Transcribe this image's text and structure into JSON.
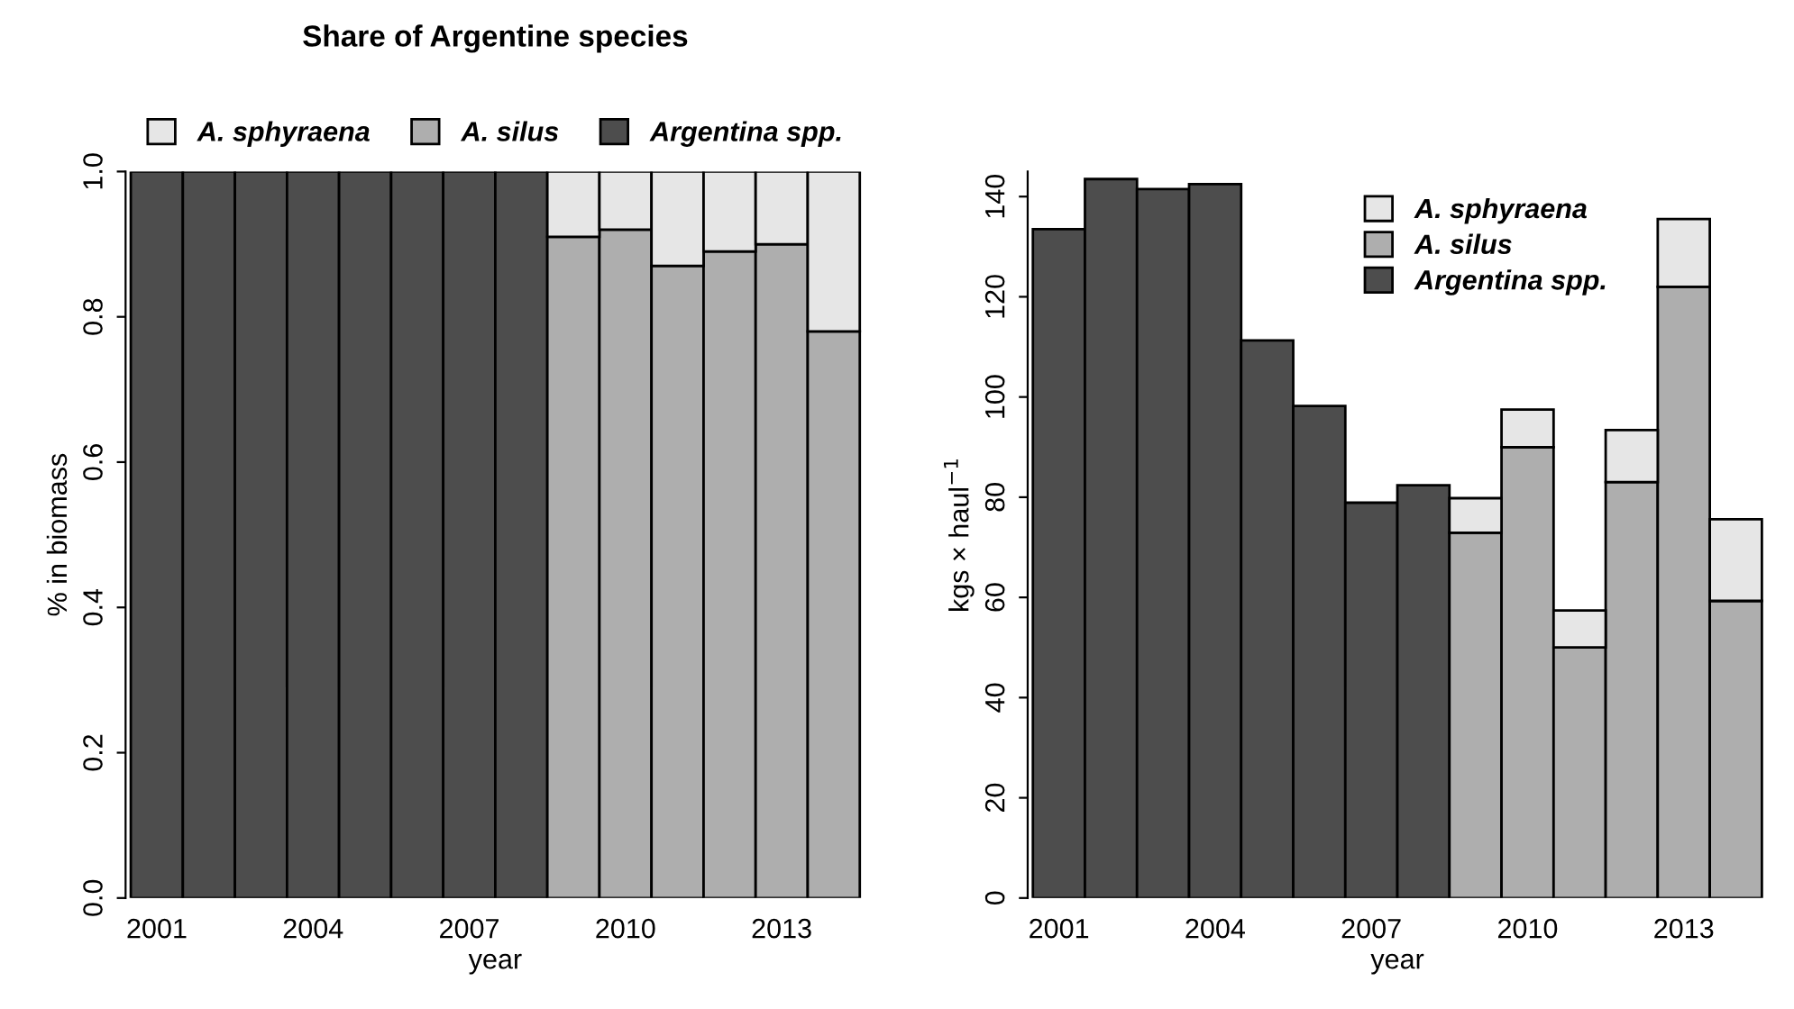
{
  "chart_data": [
    {
      "type": "bar",
      "title": "Share of Argentine species",
      "xlabel": "year",
      "ylabel": "% in biomass",
      "categories": [
        "2001",
        null,
        null,
        "2004",
        null,
        null,
        "2007",
        null,
        null,
        "2010",
        null,
        null,
        "2013",
        null
      ],
      "stacked": true,
      "legend": "top",
      "grid": false,
      "ylim": [
        0,
        1
      ],
      "yticks": [
        {
          "value": 0,
          "label": "0.0"
        },
        {
          "value": 0.2,
          "label": "0.2"
        },
        {
          "value": 0.4,
          "label": "0.4"
        },
        {
          "value": 0.6,
          "label": "0.6"
        },
        {
          "value": 0.8,
          "label": "0.8"
        },
        {
          "value": 1,
          "label": "1.0"
        }
      ],
      "series": [
        {
          "name": "Argentina spp.",
          "color": "#4d4d4d",
          "values": [
            1,
            1,
            1,
            1,
            1,
            1,
            1,
            1,
            null,
            null,
            null,
            null,
            null,
            null
          ]
        },
        {
          "name": "A. silus",
          "color": "#aeaeae",
          "values": [
            null,
            null,
            null,
            null,
            null,
            null,
            null,
            null,
            0.91,
            0.92,
            0.87,
            0.89,
            0.9,
            0.78
          ]
        },
        {
          "name": "A. sphyraena",
          "color": "#e6e6e6",
          "values": [
            null,
            null,
            null,
            null,
            null,
            null,
            null,
            null,
            0.09,
            0.08,
            0.13,
            0.11,
            0.1,
            0.22
          ]
        }
      ]
    },
    {
      "type": "bar",
      "xlabel": "year",
      "ylabel": "kgs × haul$^{−1}$",
      "categories": [
        "2001",
        null,
        null,
        "2004",
        null,
        null,
        "2007",
        null,
        null,
        "2010",
        null,
        null,
        "2013",
        null
      ],
      "stacked": true,
      "legend": "top",
      "grid": false,
      "ylim": [
        0,
        145
      ],
      "yticks": [
        0,
        20,
        40,
        60,
        80,
        100,
        120,
        140
      ],
      "series": [
        {
          "name": "Argentina spp.",
          "color": "#4d4d4d",
          "values": [
            133.5,
            143.5,
            141.5,
            142.5,
            111.3,
            98.2,
            78.9,
            82.4,
            null,
            null,
            null,
            null,
            null,
            null
          ]
        },
        {
          "name": "A. silus",
          "color": "#aeaeae",
          "values": [
            null,
            null,
            null,
            null,
            null,
            null,
            null,
            null,
            72.9,
            90.0,
            50.0,
            83.0,
            122.0,
            59.3
          ]
        },
        {
          "name": "A. sphyraena",
          "color": "#e6e6e6",
          "values": [
            null,
            null,
            null,
            null,
            null,
            null,
            null,
            null,
            6.9,
            7.5,
            7.4,
            10.4,
            13.5,
            16.3
          ]
        }
      ]
    }
  ]
}
